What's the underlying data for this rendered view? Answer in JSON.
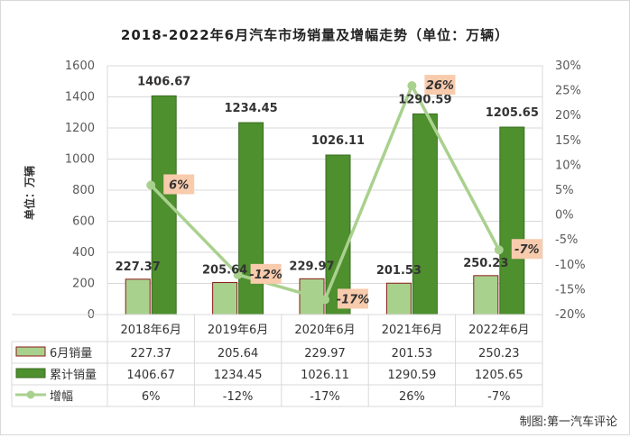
{
  "chart_data": {
    "type": "bar",
    "title": "2018-2022年6月汽车市场销量及增幅走势（单位：万辆）",
    "ylabel": "单位：万辆",
    "ylim": [
      0,
      1600
    ],
    "yticks": [
      "0",
      "200",
      "400",
      "600",
      "800",
      "1000",
      "1200",
      "1400",
      "1600"
    ],
    "y2lim": [
      -20,
      30
    ],
    "y2ticks": [
      "-20%",
      "-15%",
      "-10%",
      "-5%",
      "0%",
      "5%",
      "10%",
      "15%",
      "20%",
      "25%",
      "30%"
    ],
    "categories": [
      "2018年6月",
      "2019年6月",
      "2020年6月",
      "2021年6月",
      "2022年6月"
    ],
    "series": [
      {
        "name": "6月销量",
        "type": "bar",
        "values": [
          227.37,
          205.64,
          229.97,
          201.53,
          250.23
        ],
        "labels": [
          "227.37",
          "205.64",
          "229.97",
          "201.53",
          "250.23"
        ],
        "color": "#a9d18e"
      },
      {
        "name": "累计销量",
        "type": "bar",
        "values": [
          1406.67,
          1234.45,
          1026.11,
          1290.59,
          1205.65
        ],
        "labels": [
          "1406.67",
          "1234.45",
          "1026.11",
          "1290.59",
          "1205.65"
        ],
        "color": "#4e8f2e"
      },
      {
        "name": "增幅",
        "type": "line",
        "axis": "right",
        "values": [
          6,
          -12,
          -17,
          26,
          -7
        ],
        "labels": [
          "6%",
          "-12%",
          "-17%",
          "26%",
          "-7%"
        ],
        "color": "#a9d18e"
      }
    ],
    "grid": true,
    "legend": "bottom data table",
    "source_note": "制图:第一汽车评论"
  }
}
